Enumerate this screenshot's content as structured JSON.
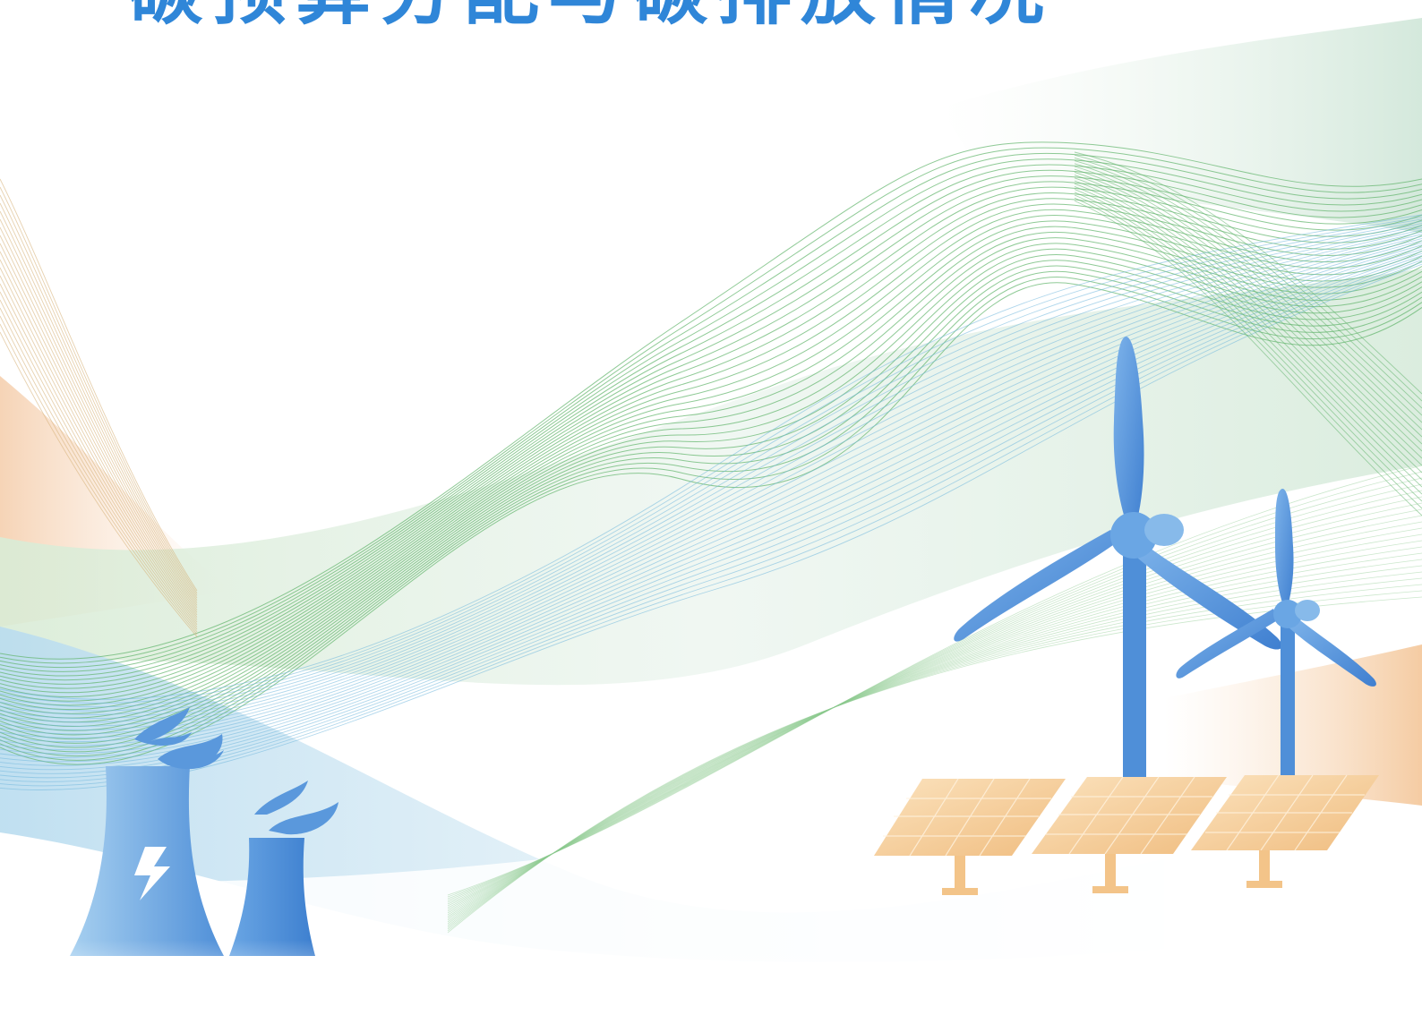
{
  "title": "碳预算分配与碳排放情况",
  "colors": {
    "title": "#2f86d8",
    "turbine_blue": "#4f8fd8",
    "panel_orange": "#f4c58a",
    "wave_green": "#5fb36a",
    "wave_blue": "#6fb6dc",
    "wave_orange": "#f2c7a0"
  },
  "icons": {
    "power_plant": "power-plant-icon",
    "lightning": "lightning-icon",
    "wind_turbine": "wind-turbine-icon",
    "solar_panel": "solar-panel-icon"
  }
}
